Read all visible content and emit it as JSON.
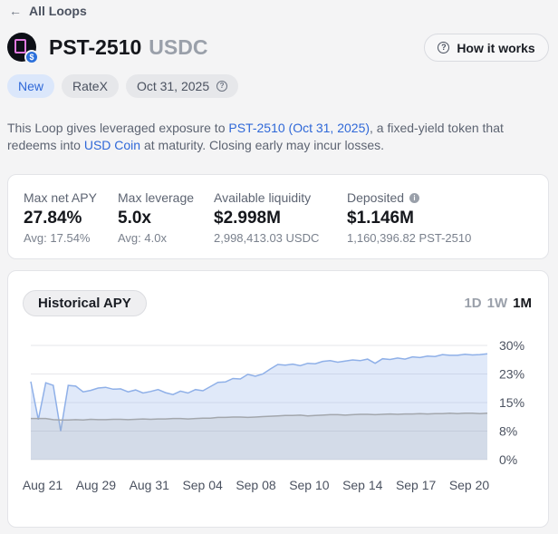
{
  "nav": {
    "back_label": "All Loops",
    "back_icon": "arrow-left-icon"
  },
  "header": {
    "title": "PST-2510",
    "subtitle": "USDC",
    "how_label": "How it works"
  },
  "tags": [
    {
      "label": "New",
      "accent": "#2f68d8"
    },
    {
      "label": "RateX"
    },
    {
      "label": "Oct 31, 2025"
    }
  ],
  "description": {
    "t1": "This Loop gives leveraged exposure to ",
    "link1": "PST-2510 (Oct 31, 2025)",
    "t2": ", a fixed-yield token that redeems into ",
    "link2": "USD Coin",
    "t3": " at maturity. Closing early may incur losses."
  },
  "stats": [
    {
      "label": "Max net APY",
      "value": "27.84%",
      "sub": "Avg: 17.54%"
    },
    {
      "label": "Max leverage",
      "value": "5.0x",
      "sub": "Avg: 4.0x"
    },
    {
      "label": "Available liquidity",
      "value": "$2.998M",
      "sub": "2,998,413.03 USDC"
    },
    {
      "label": "Deposited",
      "value": "$1.146M",
      "sub": "1,160,396.82 PST-2510"
    }
  ],
  "chart": {
    "title": "Historical APY",
    "ranges": [
      "1D",
      "1W",
      "1M"
    ],
    "active_range": "1M"
  },
  "colors": {
    "accent": "#2f68d8",
    "series_blue": "#8fb0e8",
    "series_gray": "#a3a7ad"
  },
  "chart_data": {
    "type": "area",
    "ylim": [
      0,
      30
    ],
    "y_ticks": [
      "30%",
      "23%",
      "15%",
      "8%",
      "0%"
    ],
    "x_ticks": [
      "Aug 21",
      "Aug 29",
      "Aug 31",
      "Sep 04",
      "Sep 08",
      "Sep 10",
      "Sep 14",
      "Sep 17",
      "Sep 20"
    ],
    "series": [
      {
        "values": [
          20.5,
          10.5,
          20.2,
          19.5,
          7.5,
          19.5,
          19.3,
          17.8,
          18.2,
          18.8,
          19.0,
          18.5,
          18.6,
          17.8,
          18.3,
          17.5,
          17.9,
          18.4,
          17.6,
          17.1,
          18.0,
          17.5,
          18.4,
          18.1,
          19.2,
          20.3,
          20.4,
          21.3,
          21.2,
          22.4,
          21.9,
          22.5,
          23.8,
          25.0,
          24.8,
          25.1,
          24.7,
          25.3,
          25.2,
          25.8,
          26.0,
          25.6,
          25.9,
          26.2,
          26.0,
          26.4,
          25.3,
          26.5,
          26.3,
          26.7,
          26.4,
          27.0,
          26.8,
          27.2,
          27.1,
          27.6,
          27.4,
          27.4,
          27.7,
          27.5,
          27.6,
          27.8
        ]
      },
      {
        "values": [
          10.8,
          10.8,
          10.8,
          10.5,
          10.4,
          10.4,
          10.5,
          10.4,
          10.6,
          10.5,
          10.5,
          10.6,
          10.6,
          10.5,
          10.6,
          10.7,
          10.6,
          10.7,
          10.7,
          10.8,
          10.8,
          10.7,
          10.8,
          10.9,
          10.9,
          11.1,
          11.1,
          11.2,
          11.2,
          11.1,
          11.2,
          11.3,
          11.4,
          11.5,
          11.6,
          11.6,
          11.7,
          11.5,
          11.6,
          11.7,
          11.8,
          11.8,
          11.7,
          11.8,
          11.9,
          11.9,
          11.8,
          11.9,
          12.0,
          11.9,
          12.0,
          12.0,
          12.1,
          12.0,
          12.1,
          12.1,
          12.2,
          12.1,
          12.2,
          12.2,
          12.1,
          12.2
        ]
      }
    ]
  }
}
